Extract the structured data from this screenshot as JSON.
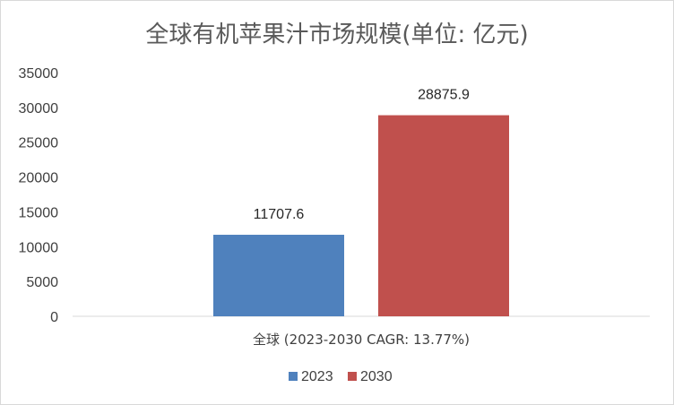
{
  "chart_data": {
    "type": "bar",
    "title": "全球有机苹果汁市场规模(单位: 亿元)",
    "categories": [
      "全球 (2023-2030 CAGR: 13.77%)"
    ],
    "series": [
      {
        "name": "2023",
        "values": [
          11707.6
        ],
        "color": "#4f81bd",
        "value_label": "11707.6"
      },
      {
        "name": "2030",
        "values": [
          28875.9
        ],
        "color": "#c0504d",
        "value_label": "28875.9"
      }
    ],
    "yticks": [
      "0",
      "5000",
      "10000",
      "15000",
      "20000",
      "25000",
      "30000",
      "35000"
    ],
    "ylim": [
      0,
      35000
    ],
    "grid": false,
    "legend": "bottom",
    "xlabel": "",
    "ylabel": ""
  }
}
